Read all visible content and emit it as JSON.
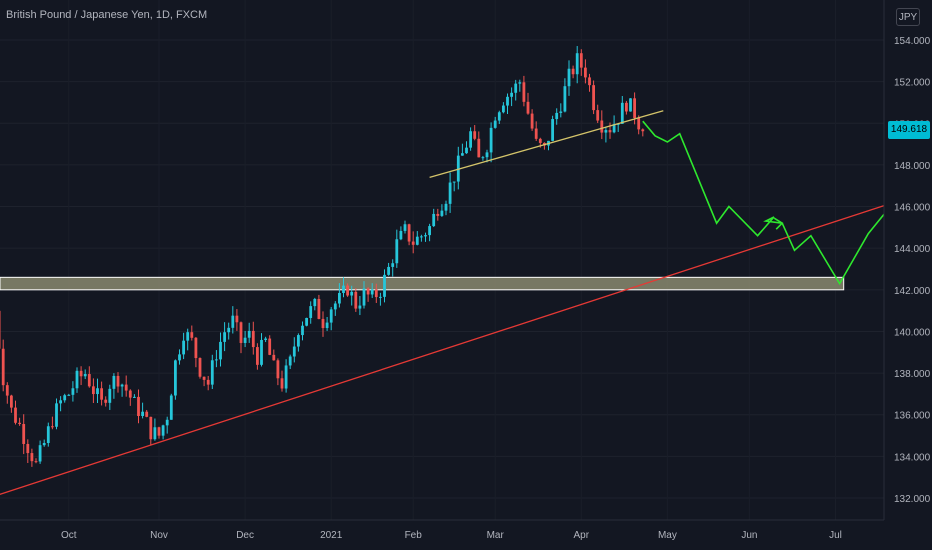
{
  "header": {
    "title": "British Pound / Japanese Yen, 1D, FXCM",
    "currency_button": "JPY"
  },
  "last_price_label": "149.618",
  "colors": {
    "background": "#131722",
    "up": "#26c6da",
    "down": "#ef5350",
    "trendline": "#e53935",
    "neckline": "#d4c46a",
    "zone_fill": "#8a8a6e",
    "zone_border": "#ffffff",
    "projection": "#2ee82e",
    "last_price": "#00bcd4"
  },
  "chart_data": {
    "type": "candlestick",
    "title": "British Pound / Japanese Yen, 1D, FXCM",
    "ylim": [
      131.2,
      155.0
    ],
    "y_ticks": [
      "132.000",
      "134.000",
      "136.000",
      "138.000",
      "140.000",
      "142.000",
      "144.000",
      "146.000",
      "148.000",
      "150.000",
      "152.000",
      "154.000"
    ],
    "x_ticks": [
      "Oct",
      "Nov",
      "Dec",
      "2021",
      "Feb",
      "Mar",
      "Apr",
      "May",
      "Jun",
      "Jul"
    ],
    "x_unit": "trading-day index (0 = first visible candle, late Sep 2020)",
    "x_tick_days": [
      18,
      40,
      61,
      82,
      102,
      122,
      143,
      164,
      184,
      205
    ],
    "close_path": [
      [
        0,
        141.0
      ],
      [
        2,
        137.8
      ],
      [
        4,
        136.2
      ],
      [
        6,
        135.5
      ],
      [
        8,
        134.5
      ],
      [
        10,
        133.6
      ],
      [
        12,
        134.6
      ],
      [
        14,
        135.8
      ],
      [
        16,
        136.6
      ],
      [
        18,
        137.0
      ],
      [
        20,
        137.7
      ],
      [
        22,
        138.0
      ],
      [
        24,
        137.2
      ],
      [
        26,
        136.5
      ],
      [
        28,
        137.5
      ],
      [
        30,
        137.8
      ],
      [
        32,
        137.2
      ],
      [
        34,
        136.5
      ],
      [
        36,
        136.0
      ],
      [
        38,
        135.2
      ],
      [
        40,
        135.0
      ],
      [
        42,
        136.0
      ],
      [
        44,
        138.5
      ],
      [
        46,
        140.0
      ],
      [
        48,
        139.5
      ],
      [
        50,
        138.2
      ],
      [
        52,
        137.5
      ],
      [
        54,
        139.0
      ],
      [
        56,
        140.0
      ],
      [
        58,
        140.5
      ],
      [
        60,
        139.5
      ],
      [
        62,
        139.8
      ],
      [
        64,
        138.8
      ],
      [
        66,
        139.5
      ],
      [
        68,
        138.2
      ],
      [
        70,
        137.5
      ],
      [
        72,
        138.5
      ],
      [
        74,
        140.2
      ],
      [
        76,
        140.8
      ],
      [
        78,
        141.2
      ],
      [
        80,
        140.5
      ],
      [
        82,
        141.2
      ],
      [
        84,
        141.5
      ],
      [
        86,
        142.1
      ],
      [
        88,
        141.3
      ],
      [
        90,
        141.8
      ],
      [
        92,
        141.6
      ],
      [
        94,
        142.0
      ],
      [
        96,
        143.0
      ],
      [
        98,
        144.2
      ],
      [
        100,
        144.8
      ],
      [
        102,
        144.3
      ],
      [
        104,
        144.6
      ],
      [
        106,
        145.0
      ],
      [
        108,
        146.0
      ],
      [
        110,
        146.5
      ],
      [
        112,
        147.5
      ],
      [
        114,
        148.5
      ],
      [
        116,
        149.5
      ],
      [
        118,
        148.2
      ],
      [
        120,
        149.0
      ],
      [
        122,
        150.5
      ],
      [
        124,
        151.2
      ],
      [
        126,
        151.5
      ],
      [
        128,
        152.0
      ],
      [
        130,
        150.5
      ],
      [
        132,
        149.0
      ],
      [
        134,
        148.7
      ],
      [
        136,
        150.0
      ],
      [
        138,
        151.0
      ],
      [
        140,
        152.2
      ],
      [
        142,
        153.0
      ],
      [
        144,
        152.5
      ],
      [
        146,
        151.0
      ],
      [
        148,
        150.0
      ],
      [
        150,
        149.8
      ],
      [
        152,
        150.3
      ],
      [
        154,
        151.0
      ],
      [
        156,
        150.5
      ],
      [
        158,
        149.6
      ]
    ],
    "last_close": 149.618,
    "trendline": {
      "from": [
        0,
        132.1
      ],
      "to": [
        227,
        146.7
      ]
    },
    "neckline": {
      "from": [
        106,
        147.4
      ],
      "to": [
        163,
        150.6
      ]
    },
    "support_zone": {
      "from": 142.0,
      "to": 142.6,
      "x_end": 207
    },
    "projection": [
      [
        158,
        150.1
      ],
      [
        161,
        149.4
      ],
      [
        164,
        149.1
      ],
      [
        167,
        149.5
      ],
      [
        176,
        145.2
      ],
      [
        179,
        146.0
      ],
      [
        186,
        144.6
      ],
      [
        190,
        145.5
      ],
      [
        188,
        145.3
      ],
      [
        192,
        145.2
      ],
      [
        195,
        143.9
      ],
      [
        199,
        144.6
      ],
      [
        206,
        142.3
      ],
      [
        213,
        144.7
      ],
      [
        220,
        146.4
      ]
    ]
  }
}
